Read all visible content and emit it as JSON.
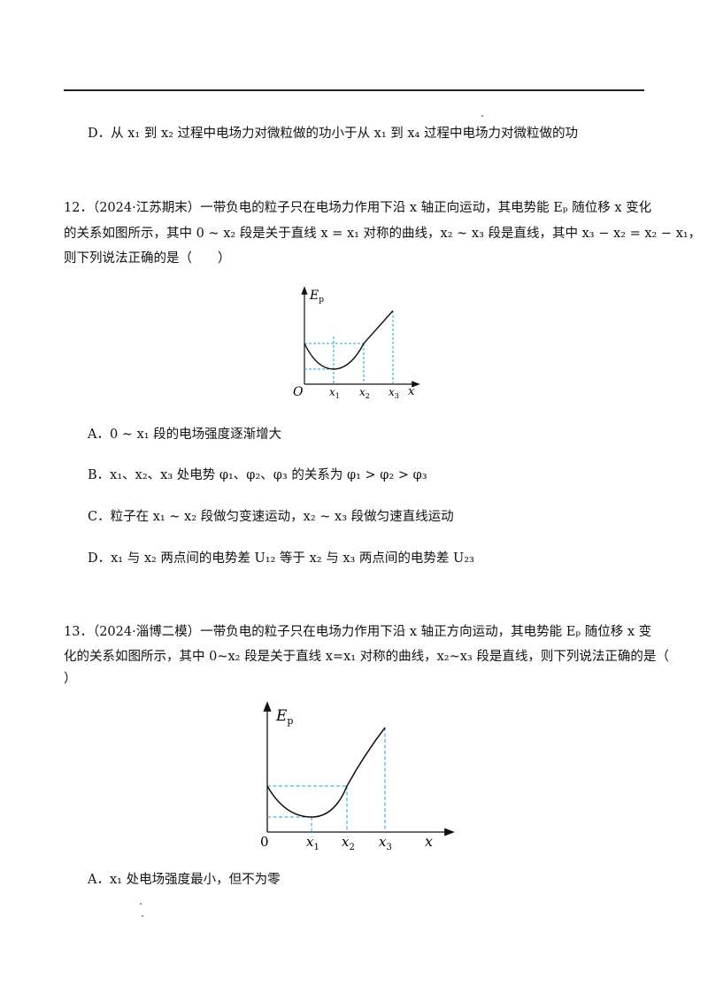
{
  "q11": {
    "option_d": "D．从 x₁ 到 x₂ 过程中电场力对微粒做的功小于从 x₁ 到 x₄ 过程中电场力对微粒做的功"
  },
  "q12": {
    "stem_line1": "12．（2024·江苏期末）一带负电的粒子只在电场力作用下沿 x 轴正向运动，其电势能 Eₚ 随位移 x 变化",
    "stem_line2": "的关系如图所示，其中 0 ~ x₂ 段是关于直线 x = x₁ 对称的曲线，x₂ ~ x₃ 段是直线，其中 x₃ − x₂ = x₂ − x₁，",
    "stem_line3": "则下列说法正确的是（　　）",
    "figure": {
      "y_label": "E",
      "y_label_sub": "p",
      "origin": "O",
      "x_label": "x",
      "ticks": [
        "x",
        "x",
        "x"
      ],
      "tick_subs": [
        "1",
        "2",
        "3"
      ]
    },
    "option_a": "A．0 ~ x₁ 段的电场强度逐渐增大",
    "option_b": "B．x₁、x₂、x₃ 处电势 φ₁、φ₂、φ₃ 的关系为 φ₁ > φ₂ > φ₃",
    "option_c": "C．粒子在 x₁ ~ x₂ 段做匀变速运动，x₂ ~ x₃ 段做匀速直线运动",
    "option_d": "D．x₁ 与 x₂ 两点间的电势差 U₁₂ 等于 x₂ 与 x₃ 两点间的电势差 U₂₃"
  },
  "q13": {
    "stem_line1": "13．（2024·淄博二模）一带负电的粒子只在电场力作用下沿 x 轴正方向运动，其电势能 Eₚ 随位移 x 变",
    "stem_line2": "化的关系如图所示，其中 0~x₂ 段是关于直线 x=x₁ 对称的曲线，x₂~x₃ 段是直线，则下列说法正确的是（",
    "stem_line3": "）",
    "figure": {
      "y_label": "E",
      "y_label_sub": "p",
      "origin": "0",
      "x_label": "x",
      "ticks": [
        "x",
        "x",
        "x"
      ],
      "tick_subs": [
        "1",
        "2",
        "3"
      ]
    },
    "option_a": "A．x₁ 处电场强度最小，但不为零"
  },
  "colors": {
    "dashed_guides": "#1aa0e6",
    "curve": "#111111"
  }
}
